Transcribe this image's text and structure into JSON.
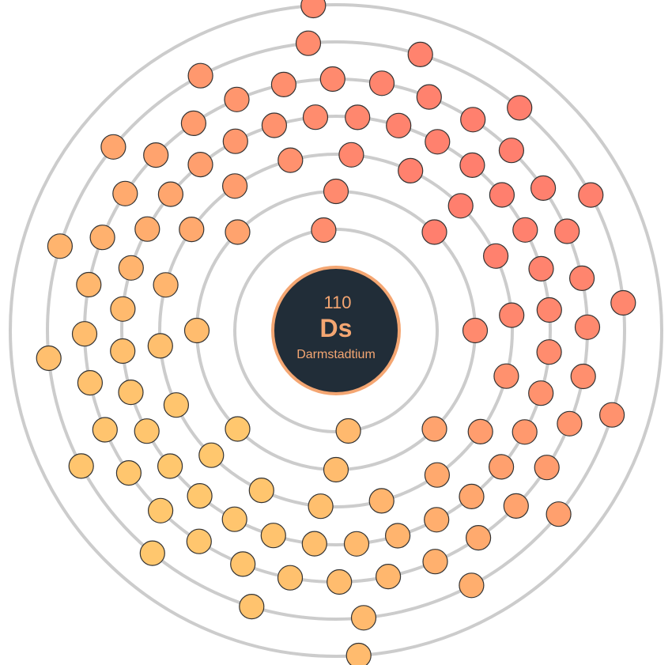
{
  "element": {
    "atomic_number": "110",
    "symbol": "Ds",
    "name": "Darmstadtium"
  },
  "electron_configuration": [
    2,
    8,
    18,
    32,
    32,
    16,
    2
  ],
  "colors": {
    "nucleus_fill": "#212d38",
    "nucleus_ring": "#f4a672",
    "text": "#f4a672",
    "shell": "#cccccc",
    "electron_gradient_start": "#ff7f6e",
    "electron_gradient_end": "#ffc76e"
  }
}
